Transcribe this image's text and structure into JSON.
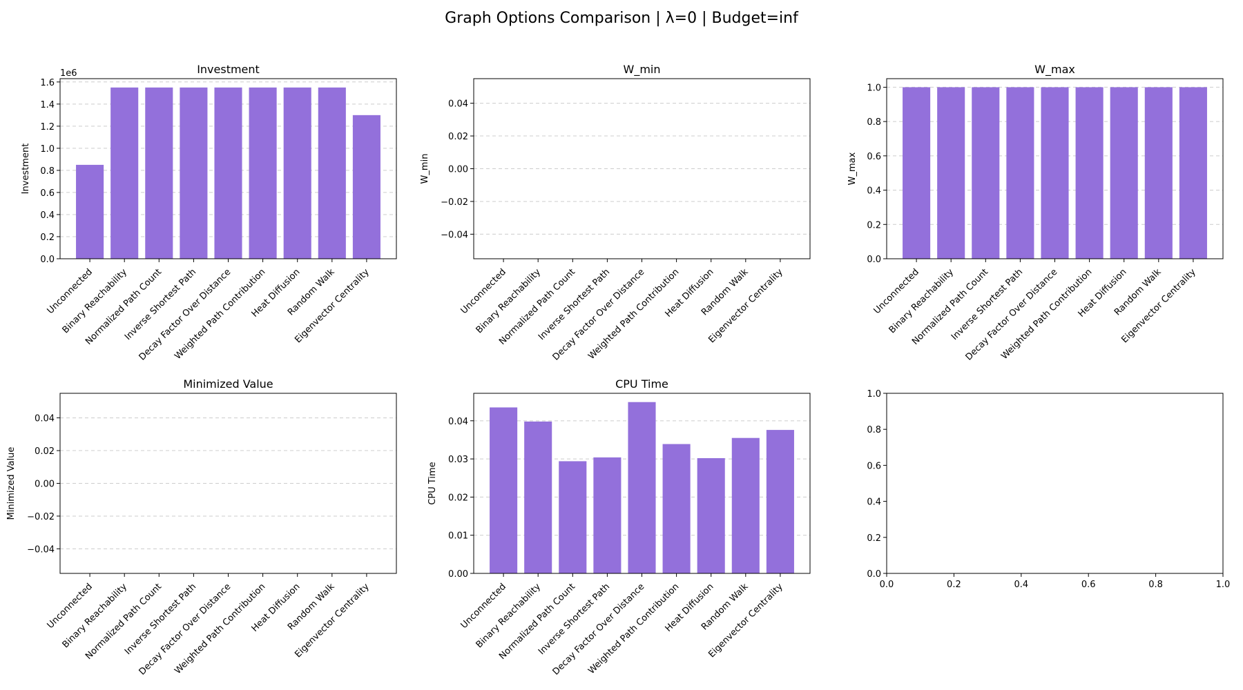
{
  "figure": {
    "suptitle": "Graph Options Comparison | λ=0 | Budget=inf",
    "bar_color": "#9370DB",
    "grid_color": "#cccccc"
  },
  "chart_data": [
    {
      "type": "bar",
      "title": "Investment",
      "ylabel": "Investment",
      "xlabel": "",
      "multiplier_label": "1e6",
      "categories": [
        "Unconnected",
        "Binary Reachability",
        "Normalized Path Count",
        "Inverse Shortest Path",
        "Decay Factor Over Distance",
        "Weighted Path Contribution",
        "Heat Diffusion",
        "Random Walk",
        "Eigenvector Centrality"
      ],
      "values": [
        850000,
        1550000,
        1550000,
        1550000,
        1550000,
        1550000,
        1550000,
        1550000,
        1300000
      ],
      "ylim": [
        0,
        1630000
      ],
      "yticks": [
        0,
        200000,
        400000,
        600000,
        800000,
        1000000,
        1200000,
        1400000,
        1600000
      ],
      "ytick_labels": [
        "0.0",
        "0.2",
        "0.4",
        "0.6",
        "0.8",
        "1.0",
        "1.2",
        "1.4",
        "1.6"
      ],
      "grid": true
    },
    {
      "type": "bar",
      "title": "W_min",
      "ylabel": "W_min",
      "xlabel": "",
      "categories": [
        "Unconnected",
        "Binary Reachability",
        "Normalized Path Count",
        "Inverse Shortest Path",
        "Decay Factor Over Distance",
        "Weighted Path Contribution",
        "Heat Diffusion",
        "Random Walk",
        "Eigenvector Centrality"
      ],
      "values": [
        0,
        0,
        0,
        0,
        0,
        0,
        0,
        0,
        0
      ],
      "ylim": [
        -0.055,
        0.055
      ],
      "yticks": [
        -0.04,
        -0.02,
        0.0,
        0.02,
        0.04
      ],
      "ytick_labels": [
        "−0.04",
        "−0.02",
        "0.00",
        "0.02",
        "0.04"
      ],
      "grid": true
    },
    {
      "type": "bar",
      "title": "W_max",
      "ylabel": "W_max",
      "xlabel": "",
      "categories": [
        "Unconnected",
        "Binary Reachability",
        "Normalized Path Count",
        "Inverse Shortest Path",
        "Decay Factor Over Distance",
        "Weighted Path Contribution",
        "Heat Diffusion",
        "Random Walk",
        "Eigenvector Centrality"
      ],
      "values": [
        1,
        1,
        1,
        1,
        1,
        1,
        1,
        1,
        1
      ],
      "ylim": [
        0,
        1.05
      ],
      "yticks": [
        0,
        0.2,
        0.4,
        0.6,
        0.8,
        1.0
      ],
      "ytick_labels": [
        "0.0",
        "0.2",
        "0.4",
        "0.6",
        "0.8",
        "1.0"
      ],
      "grid": true
    },
    {
      "type": "bar",
      "title": "Minimized Value",
      "ylabel": "Minimized Value",
      "xlabel": "",
      "categories": [
        "Unconnected",
        "Binary Reachability",
        "Normalized Path Count",
        "Inverse Shortest Path",
        "Decay Factor Over Distance",
        "Weighted Path Contribution",
        "Heat Diffusion",
        "Random Walk",
        "Eigenvector Centrality"
      ],
      "values": [
        0,
        0,
        0,
        0,
        0,
        0,
        0,
        0,
        0
      ],
      "ylim": [
        -0.055,
        0.055
      ],
      "yticks": [
        -0.04,
        -0.02,
        0.0,
        0.02,
        0.04
      ],
      "ytick_labels": [
        "−0.04",
        "−0.02",
        "0.00",
        "0.02",
        "0.04"
      ],
      "grid": true
    },
    {
      "type": "bar",
      "title": "CPU Time",
      "ylabel": "CPU Time",
      "xlabel": "",
      "categories": [
        "Unconnected",
        "Binary Reachability",
        "Normalized Path Count",
        "Inverse Shortest Path",
        "Decay Factor Over Distance",
        "Weighted Path Contribution",
        "Heat Diffusion",
        "Random Walk",
        "Eigenvector Centrality"
      ],
      "values": [
        0.0435,
        0.0398,
        0.0294,
        0.0304,
        0.0449,
        0.0339,
        0.0302,
        0.0355,
        0.0376
      ],
      "ylim": [
        0,
        0.0472
      ],
      "yticks": [
        0,
        0.01,
        0.02,
        0.03,
        0.04
      ],
      "ytick_labels": [
        "0.00",
        "0.01",
        "0.02",
        "0.03",
        "0.04"
      ],
      "grid": true
    },
    {
      "type": "empty",
      "title": "",
      "categories": [],
      "values": [],
      "xlim": [
        0,
        1
      ],
      "ylim": [
        0,
        1
      ],
      "xticks": [
        0,
        0.2,
        0.4,
        0.6,
        0.8,
        1.0
      ],
      "xtick_labels": [
        "0.0",
        "0.2",
        "0.4",
        "0.6",
        "0.8",
        "1.0"
      ],
      "yticks": [
        0,
        0.2,
        0.4,
        0.6,
        0.8,
        1.0
      ],
      "ytick_labels": [
        "0.0",
        "0.2",
        "0.4",
        "0.6",
        "0.8",
        "1.0"
      ],
      "grid": false
    }
  ]
}
